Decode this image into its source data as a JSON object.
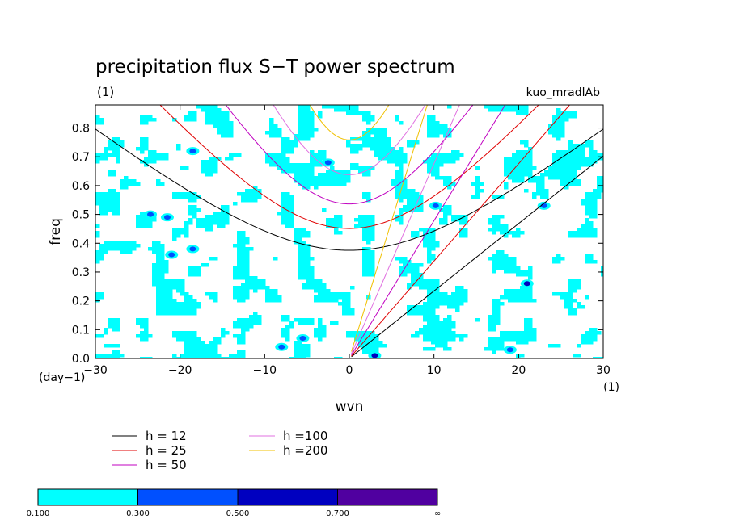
{
  "chart_data": {
    "type": "contour",
    "title": "precipitation flux S−T power spectrum",
    "units_note": "(1)",
    "run_label": "kuo_mradlAb",
    "xlabel": "wvn",
    "ylabel": "freq",
    "y_unit_note": "(day−1)",
    "x_unit_note": "(1)",
    "xlim": [
      -30,
      30
    ],
    "ylim": [
      0.0,
      0.88
    ],
    "x_ticks": [
      -30,
      -20,
      -10,
      0,
      10,
      20,
      30
    ],
    "x_tick_labels": [
      "−30",
      "−20",
      "−10",
      "0",
      "10",
      "20",
      "30"
    ],
    "y_ticks": [
      0.0,
      0.1,
      0.2,
      0.3,
      0.4,
      0.5,
      0.6,
      0.7,
      0.8
    ],
    "y_tick_labels": [
      "0.0",
      "0.1",
      "0.2",
      "0.3",
      "0.4",
      "0.5",
      "0.6",
      "0.7",
      "0.8"
    ],
    "dispersion_lines": [
      {
        "label": "h = 12",
        "h": 12,
        "color": "#000000"
      },
      {
        "label": "h = 25",
        "h": 25,
        "color": "#e00000"
      },
      {
        "label": "h = 50",
        "h": 50,
        "color": "#c000c0"
      },
      {
        "label": "h =100",
        "h": 100,
        "color": "#e070e0"
      },
      {
        "label": "h =200",
        "h": 200,
        "color": "#f0c000"
      }
    ],
    "colorbar": {
      "levels": [
        "0.100",
        "0.300",
        "0.500",
        "0.700",
        "∞"
      ],
      "colors": [
        "#00ffff",
        "#0050ff",
        "#0000c0",
        "#5000a0"
      ]
    },
    "high_value_patches": [
      {
        "x": -18.5,
        "y": 0.72,
        "level": 1
      },
      {
        "x": -23.5,
        "y": 0.5,
        "level": 1
      },
      {
        "x": -21.5,
        "y": 0.49,
        "level": 1
      },
      {
        "x": -21.0,
        "y": 0.36,
        "level": 1
      },
      {
        "x": -18.5,
        "y": 0.38,
        "level": 1
      },
      {
        "x": -2.5,
        "y": 0.68,
        "level": 1
      },
      {
        "x": 10.2,
        "y": 0.53,
        "level": 1
      },
      {
        "x": 21.0,
        "y": 0.26,
        "level": 2
      },
      {
        "x": -8.0,
        "y": 0.04,
        "level": 1
      },
      {
        "x": -5.5,
        "y": 0.07,
        "level": 1
      },
      {
        "x": 3.0,
        "y": 0.01,
        "level": 2
      },
      {
        "x": 19.0,
        "y": 0.03,
        "level": 1
      },
      {
        "x": 23.0,
        "y": 0.53,
        "level": 1
      }
    ]
  }
}
